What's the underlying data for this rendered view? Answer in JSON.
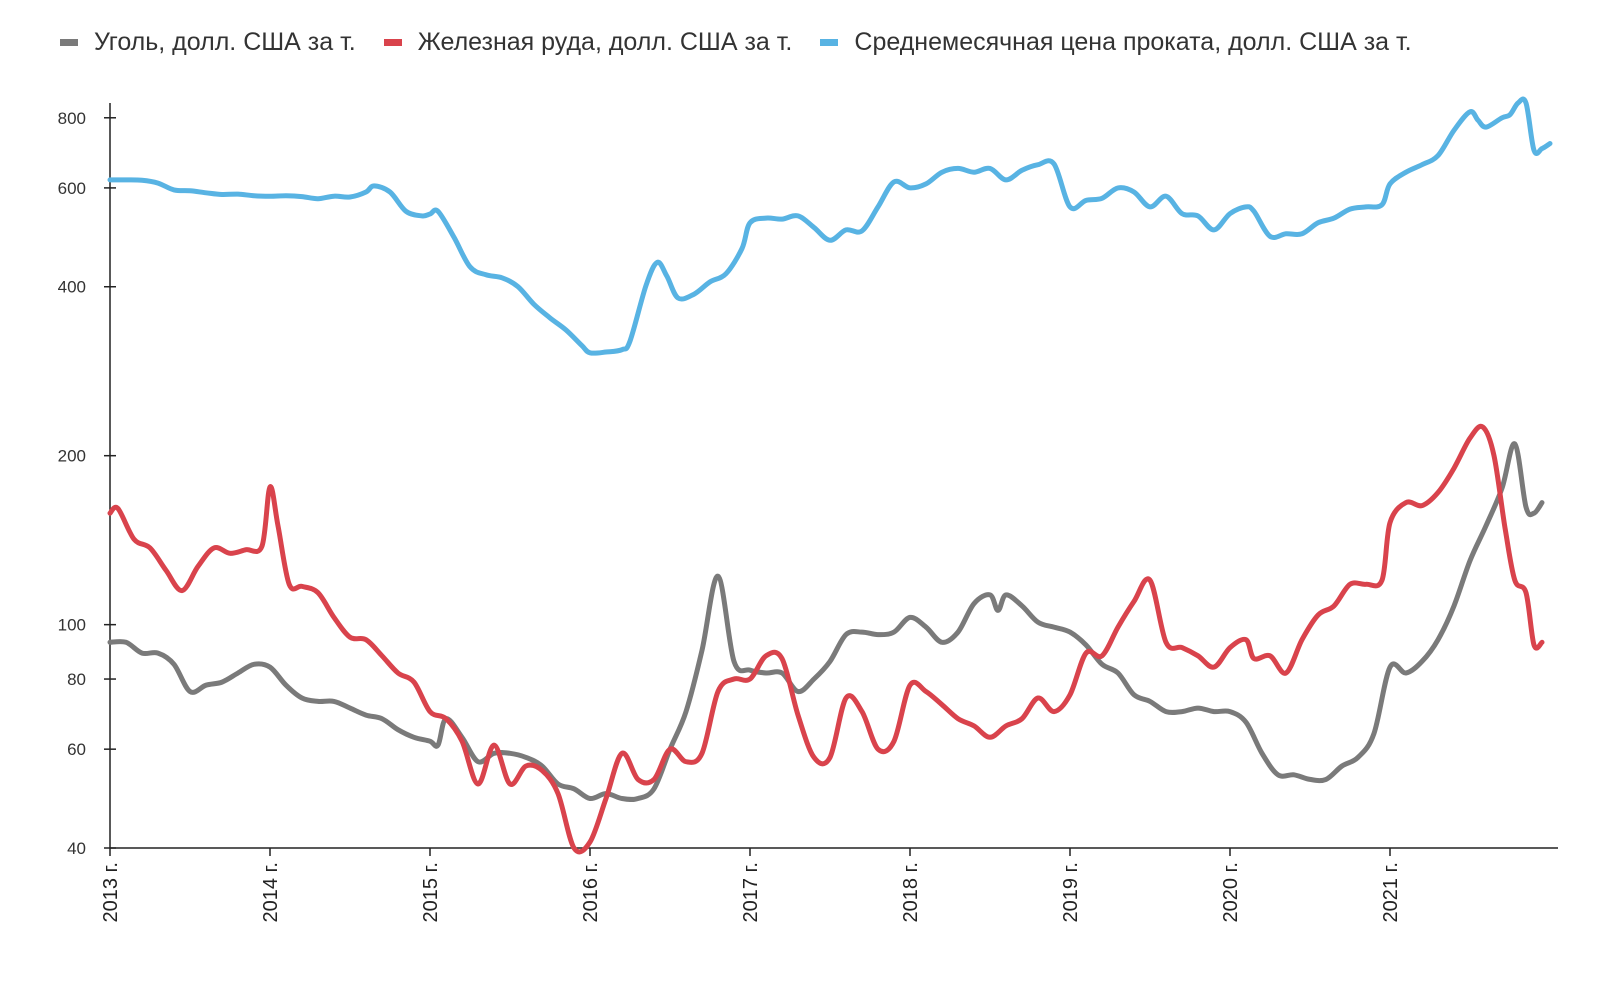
{
  "chart_data": {
    "type": "line",
    "y_scale": "log",
    "ylim": [
      40,
      850
    ],
    "xlim": [
      2013.0,
      2022.05
    ],
    "y_ticks": [
      40,
      60,
      80,
      100,
      200,
      400,
      600,
      800
    ],
    "x_ticks": [
      {
        "value": 2013,
        "label": "2013 г."
      },
      {
        "value": 2014,
        "label": "2014 г."
      },
      {
        "value": 2015,
        "label": "2015 г."
      },
      {
        "value": 2016,
        "label": "2016 г."
      },
      {
        "value": 2017,
        "label": "2017 г."
      },
      {
        "value": 2018,
        "label": "2018 г."
      },
      {
        "value": 2019,
        "label": "2019 г."
      },
      {
        "value": 2020,
        "label": "2020 г."
      },
      {
        "value": 2021,
        "label": "2021 г."
      }
    ],
    "legend_position": "top",
    "grid": false,
    "series": [
      {
        "name": "Уголь, долл. США за т.",
        "color": "#7a7a7a",
        "points": [
          [
            2013.0,
            93
          ],
          [
            2013.1,
            93
          ],
          [
            2013.2,
            89
          ],
          [
            2013.3,
            89
          ],
          [
            2013.4,
            85
          ],
          [
            2013.5,
            76
          ],
          [
            2013.6,
            78
          ],
          [
            2013.7,
            79
          ],
          [
            2013.8,
            82
          ],
          [
            2013.9,
            85
          ],
          [
            2014.0,
            84
          ],
          [
            2014.1,
            78
          ],
          [
            2014.2,
            74
          ],
          [
            2014.3,
            73
          ],
          [
            2014.4,
            73
          ],
          [
            2014.5,
            71
          ],
          [
            2014.6,
            69
          ],
          [
            2014.7,
            68
          ],
          [
            2014.8,
            65
          ],
          [
            2014.9,
            63
          ],
          [
            2015.0,
            62
          ],
          [
            2015.05,
            61
          ],
          [
            2015.1,
            68
          ],
          [
            2015.2,
            63
          ],
          [
            2015.3,
            57
          ],
          [
            2015.4,
            59
          ],
          [
            2015.5,
            59
          ],
          [
            2015.6,
            58
          ],
          [
            2015.7,
            56
          ],
          [
            2015.8,
            52
          ],
          [
            2015.9,
            51
          ],
          [
            2016.0,
            49
          ],
          [
            2016.1,
            50
          ],
          [
            2016.2,
            49
          ],
          [
            2016.3,
            49
          ],
          [
            2016.4,
            51
          ],
          [
            2016.5,
            60
          ],
          [
            2016.6,
            70
          ],
          [
            2016.7,
            90
          ],
          [
            2016.8,
            122
          ],
          [
            2016.9,
            86
          ],
          [
            2017.0,
            83
          ],
          [
            2017.1,
            82
          ],
          [
            2017.2,
            82
          ],
          [
            2017.3,
            76
          ],
          [
            2017.4,
            80
          ],
          [
            2017.5,
            86
          ],
          [
            2017.6,
            96
          ],
          [
            2017.7,
            97
          ],
          [
            2017.8,
            96
          ],
          [
            2017.9,
            97
          ],
          [
            2018.0,
            103
          ],
          [
            2018.1,
            99
          ],
          [
            2018.2,
            93
          ],
          [
            2018.3,
            97
          ],
          [
            2018.4,
            109
          ],
          [
            2018.5,
            113
          ],
          [
            2018.55,
            106
          ],
          [
            2018.6,
            113
          ],
          [
            2018.7,
            108
          ],
          [
            2018.8,
            101
          ],
          [
            2018.9,
            99
          ],
          [
            2019.0,
            97
          ],
          [
            2019.1,
            92
          ],
          [
            2019.2,
            85
          ],
          [
            2019.3,
            82
          ],
          [
            2019.4,
            75
          ],
          [
            2019.5,
            73
          ],
          [
            2019.6,
            70
          ],
          [
            2019.7,
            70
          ],
          [
            2019.8,
            71
          ],
          [
            2019.9,
            70
          ],
          [
            2020.0,
            70
          ],
          [
            2020.1,
            67
          ],
          [
            2020.2,
            59
          ],
          [
            2020.3,
            54
          ],
          [
            2020.4,
            54
          ],
          [
            2020.5,
            53
          ],
          [
            2020.6,
            53
          ],
          [
            2020.7,
            56
          ],
          [
            2020.8,
            58
          ],
          [
            2020.9,
            64
          ],
          [
            2021.0,
            84
          ],
          [
            2021.1,
            82
          ],
          [
            2021.2,
            86
          ],
          [
            2021.3,
            94
          ],
          [
            2021.4,
            108
          ],
          [
            2021.5,
            130
          ],
          [
            2021.6,
            150
          ],
          [
            2021.7,
            175
          ],
          [
            2021.78,
            210
          ],
          [
            2021.85,
            162
          ],
          [
            2021.9,
            158
          ],
          [
            2021.95,
            165
          ]
        ]
      },
      {
        "name": "Железная руда, долл. США за т.",
        "color": "#d9434c",
        "points": [
          [
            2013.0,
            158
          ],
          [
            2013.05,
            161
          ],
          [
            2013.15,
            142
          ],
          [
            2013.25,
            137
          ],
          [
            2013.35,
            125
          ],
          [
            2013.45,
            115
          ],
          [
            2013.55,
            127
          ],
          [
            2013.65,
            137
          ],
          [
            2013.75,
            134
          ],
          [
            2013.85,
            136
          ],
          [
            2013.95,
            138
          ],
          [
            2014.0,
            176
          ],
          [
            2014.05,
            150
          ],
          [
            2014.12,
            118
          ],
          [
            2014.2,
            117
          ],
          [
            2014.3,
            114
          ],
          [
            2014.4,
            103
          ],
          [
            2014.5,
            95
          ],
          [
            2014.6,
            94
          ],
          [
            2014.7,
            88
          ],
          [
            2014.8,
            82
          ],
          [
            2014.9,
            79
          ],
          [
            2015.0,
            70
          ],
          [
            2015.1,
            68
          ],
          [
            2015.2,
            62
          ],
          [
            2015.3,
            52
          ],
          [
            2015.4,
            61
          ],
          [
            2015.5,
            52
          ],
          [
            2015.6,
            56
          ],
          [
            2015.7,
            55
          ],
          [
            2015.8,
            50
          ],
          [
            2015.9,
            40
          ],
          [
            2016.0,
            41
          ],
          [
            2016.1,
            49
          ],
          [
            2016.2,
            59
          ],
          [
            2016.3,
            53
          ],
          [
            2016.4,
            53
          ],
          [
            2016.5,
            60
          ],
          [
            2016.6,
            57
          ],
          [
            2016.7,
            59
          ],
          [
            2016.8,
            76
          ],
          [
            2016.9,
            80
          ],
          [
            2017.0,
            80
          ],
          [
            2017.1,
            88
          ],
          [
            2017.2,
            87
          ],
          [
            2017.3,
            69
          ],
          [
            2017.4,
            58
          ],
          [
            2017.5,
            58
          ],
          [
            2017.6,
            74
          ],
          [
            2017.7,
            70
          ],
          [
            2017.8,
            60
          ],
          [
            2017.9,
            62
          ],
          [
            2018.0,
            78
          ],
          [
            2018.1,
            76
          ],
          [
            2018.2,
            72
          ],
          [
            2018.3,
            68
          ],
          [
            2018.4,
            66
          ],
          [
            2018.5,
            63
          ],
          [
            2018.6,
            66
          ],
          [
            2018.7,
            68
          ],
          [
            2018.8,
            74
          ],
          [
            2018.9,
            70
          ],
          [
            2019.0,
            75
          ],
          [
            2019.1,
            89
          ],
          [
            2019.2,
            88
          ],
          [
            2019.3,
            99
          ],
          [
            2019.4,
            110
          ],
          [
            2019.5,
            120
          ],
          [
            2019.6,
            93
          ],
          [
            2019.7,
            91
          ],
          [
            2019.8,
            88
          ],
          [
            2019.9,
            84
          ],
          [
            2020.0,
            91
          ],
          [
            2020.1,
            94
          ],
          [
            2020.15,
            87
          ],
          [
            2020.25,
            88
          ],
          [
            2020.35,
            82
          ],
          [
            2020.45,
            94
          ],
          [
            2020.55,
            104
          ],
          [
            2020.65,
            108
          ],
          [
            2020.75,
            118
          ],
          [
            2020.85,
            118
          ],
          [
            2020.95,
            120
          ],
          [
            2021.0,
            152
          ],
          [
            2021.1,
            165
          ],
          [
            2021.2,
            163
          ],
          [
            2021.3,
            172
          ],
          [
            2021.4,
            190
          ],
          [
            2021.5,
            215
          ],
          [
            2021.58,
            225
          ],
          [
            2021.65,
            200
          ],
          [
            2021.72,
            148
          ],
          [
            2021.78,
            120
          ],
          [
            2021.85,
            114
          ],
          [
            2021.9,
            92
          ],
          [
            2021.95,
            93
          ]
        ]
      },
      {
        "name": "Среднемесячная цена проката, долл. США за т.",
        "color": "#58b3e3",
        "points": [
          [
            2013.0,
            620
          ],
          [
            2013.1,
            620
          ],
          [
            2013.2,
            619
          ],
          [
            2013.3,
            612
          ],
          [
            2013.4,
            595
          ],
          [
            2013.5,
            593
          ],
          [
            2013.6,
            588
          ],
          [
            2013.7,
            584
          ],
          [
            2013.8,
            585
          ],
          [
            2013.9,
            581
          ],
          [
            2014.0,
            580
          ],
          [
            2014.1,
            581
          ],
          [
            2014.2,
            579
          ],
          [
            2014.3,
            574
          ],
          [
            2014.4,
            580
          ],
          [
            2014.5,
            578
          ],
          [
            2014.6,
            590
          ],
          [
            2014.65,
            605
          ],
          [
            2014.75,
            590
          ],
          [
            2014.85,
            545
          ],
          [
            2014.95,
            535
          ],
          [
            2015.0,
            539
          ],
          [
            2015.05,
            545
          ],
          [
            2015.15,
            490
          ],
          [
            2015.25,
            434
          ],
          [
            2015.35,
            420
          ],
          [
            2015.45,
            415
          ],
          [
            2015.55,
            400
          ],
          [
            2015.65,
            372
          ],
          [
            2015.75,
            352
          ],
          [
            2015.85,
            335
          ],
          [
            2015.95,
            314
          ],
          [
            2016.0,
            305
          ],
          [
            2016.1,
            306
          ],
          [
            2016.2,
            309
          ],
          [
            2016.25,
            320
          ],
          [
            2016.35,
            402
          ],
          [
            2016.42,
            442
          ],
          [
            2016.48,
            418
          ],
          [
            2016.55,
            382
          ],
          [
            2016.65,
            388
          ],
          [
            2016.75,
            408
          ],
          [
            2016.85,
            422
          ],
          [
            2016.95,
            468
          ],
          [
            2017.0,
            520
          ],
          [
            2017.1,
            530
          ],
          [
            2017.2,
            528
          ],
          [
            2017.3,
            535
          ],
          [
            2017.4,
            510
          ],
          [
            2017.5,
            484
          ],
          [
            2017.6,
            505
          ],
          [
            2017.7,
            503
          ],
          [
            2017.8,
            555
          ],
          [
            2017.9,
            615
          ],
          [
            2018.0,
            600
          ],
          [
            2018.1,
            610
          ],
          [
            2018.2,
            640
          ],
          [
            2018.3,
            650
          ],
          [
            2018.4,
            640
          ],
          [
            2018.5,
            650
          ],
          [
            2018.6,
            620
          ],
          [
            2018.7,
            645
          ],
          [
            2018.8,
            660
          ],
          [
            2018.9,
            662
          ],
          [
            2019.0,
            555
          ],
          [
            2019.1,
            570
          ],
          [
            2019.2,
            575
          ],
          [
            2019.3,
            600
          ],
          [
            2019.4,
            590
          ],
          [
            2019.5,
            555
          ],
          [
            2019.6,
            580
          ],
          [
            2019.7,
            540
          ],
          [
            2019.8,
            535
          ],
          [
            2019.9,
            505
          ],
          [
            2020.0,
            540
          ],
          [
            2020.1,
            555
          ],
          [
            2020.15,
            545
          ],
          [
            2020.25,
            492
          ],
          [
            2020.35,
            497
          ],
          [
            2020.45,
            497
          ],
          [
            2020.55,
            520
          ],
          [
            2020.65,
            530
          ],
          [
            2020.75,
            550
          ],
          [
            2020.85,
            555
          ],
          [
            2020.95,
            560
          ],
          [
            2021.0,
            610
          ],
          [
            2021.1,
            640
          ],
          [
            2021.2,
            660
          ],
          [
            2021.3,
            685
          ],
          [
            2021.4,
            760
          ],
          [
            2021.5,
            820
          ],
          [
            2021.55,
            792
          ],
          [
            2021.6,
            770
          ],
          [
            2021.7,
            800
          ],
          [
            2021.75,
            810
          ],
          [
            2021.8,
            850
          ],
          [
            2021.85,
            850
          ],
          [
            2021.9,
            700
          ],
          [
            2021.95,
            705
          ],
          [
            2022.0,
            720
          ]
        ]
      }
    ]
  }
}
